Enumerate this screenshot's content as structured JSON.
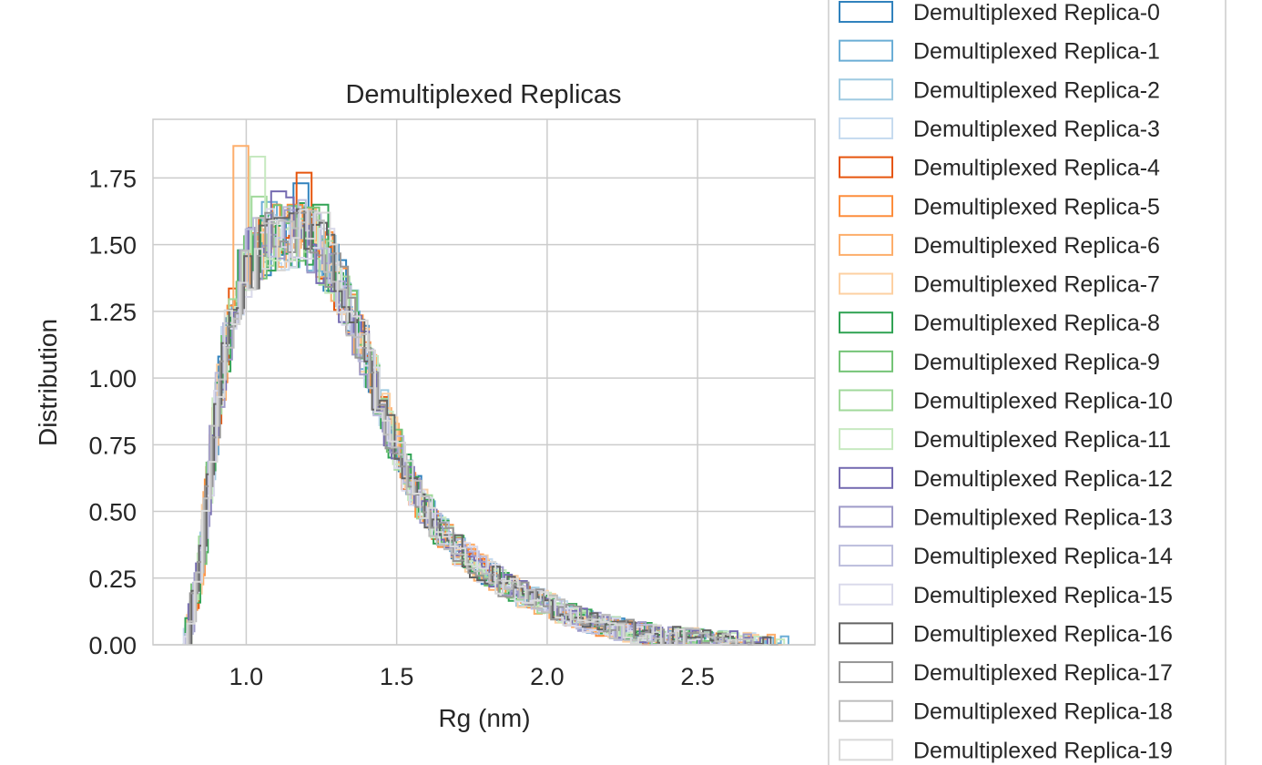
{
  "chart_data": {
    "type": "histogram-step",
    "title": "Demultiplexed Replicas",
    "xlabel": "Rg (nm)",
    "ylabel": "Distribution",
    "xlim": [
      0.69,
      2.89
    ],
    "ylim": [
      0.0,
      1.97
    ],
    "xticks": [
      1.0,
      1.5,
      2.0,
      2.5
    ],
    "xtick_labels": [
      "1.0",
      "1.5",
      "2.0",
      "2.5"
    ],
    "yticks": [
      0.0,
      0.25,
      0.5,
      0.75,
      1.0,
      1.25,
      1.5,
      1.75
    ],
    "ytick_labels": [
      "0.00",
      "0.25",
      "0.50",
      "0.75",
      "1.00",
      "1.25",
      "1.50",
      "1.75"
    ],
    "grid": true,
    "legend_position": "outside-right",
    "base_profile": {
      "x": [
        0.8,
        0.85,
        0.9,
        0.95,
        1.0,
        1.05,
        1.1,
        1.15,
        1.2,
        1.25,
        1.3,
        1.35,
        1.4,
        1.45,
        1.5,
        1.55,
        1.6,
        1.65,
        1.7,
        1.8,
        1.9,
        2.0,
        2.1,
        2.2,
        2.3,
        2.4,
        2.5,
        2.6,
        2.7,
        2.8
      ],
      "y": [
        0.0,
        0.3,
        0.85,
        1.25,
        1.42,
        1.48,
        1.52,
        1.55,
        1.53,
        1.48,
        1.38,
        1.25,
        1.08,
        0.9,
        0.74,
        0.6,
        0.5,
        0.42,
        0.36,
        0.27,
        0.2,
        0.15,
        0.1,
        0.07,
        0.045,
        0.03,
        0.02,
        0.012,
        0.006,
        0.0
      ]
    },
    "series": [
      {
        "name": "Demultiplexed Replica-0",
        "color": "#3182bd",
        "peak": [
          1.17,
          1.73
        ]
      },
      {
        "name": "Demultiplexed Replica-1",
        "color": "#6baed6",
        "peak": [
          1.08,
          1.66
        ]
      },
      {
        "name": "Demultiplexed Replica-2",
        "color": "#9ecae1",
        "peak": [
          1.12,
          1.6
        ]
      },
      {
        "name": "Demultiplexed Replica-3",
        "color": "#c6dbef",
        "peak": [
          1.2,
          1.58
        ]
      },
      {
        "name": "Demultiplexed Replica-4",
        "color": "#e6550d",
        "peak": [
          1.2,
          1.77
        ]
      },
      {
        "name": "Demultiplexed Replica-5",
        "color": "#fd8d3c",
        "peak": [
          1.15,
          1.65
        ]
      },
      {
        "name": "Demultiplexed Replica-6",
        "color": "#fdae6b",
        "peak": [
          0.98,
          1.87
        ]
      },
      {
        "name": "Demultiplexed Replica-7",
        "color": "#fdd0a2",
        "peak": [
          1.2,
          1.62
        ]
      },
      {
        "name": "Demultiplexed Replica-8",
        "color": "#31a354",
        "peak": [
          1.25,
          1.65
        ]
      },
      {
        "name": "Demultiplexed Replica-9",
        "color": "#74c476",
        "peak": [
          1.23,
          1.64
        ]
      },
      {
        "name": "Demultiplexed Replica-10",
        "color": "#a1d99b",
        "peak": [
          1.05,
          1.68
        ]
      },
      {
        "name": "Demultiplexed Replica-11",
        "color": "#c7e9c0",
        "peak": [
          1.03,
          1.83
        ]
      },
      {
        "name": "Demultiplexed Replica-12",
        "color": "#756bb1",
        "peak": [
          1.1,
          1.7
        ]
      },
      {
        "name": "Demultiplexed Replica-13",
        "color": "#9e9ac8",
        "peak": [
          1.15,
          1.63
        ]
      },
      {
        "name": "Demultiplexed Replica-14",
        "color": "#bcbddc",
        "peak": [
          1.05,
          1.6
        ]
      },
      {
        "name": "Demultiplexed Replica-15",
        "color": "#dadaeb",
        "peak": [
          1.28,
          1.56
        ]
      },
      {
        "name": "Demultiplexed Replica-16",
        "color": "#636363",
        "peak": [
          1.13,
          1.6
        ]
      },
      {
        "name": "Demultiplexed Replica-17",
        "color": "#969696",
        "peak": [
          1.2,
          1.62
        ]
      },
      {
        "name": "Demultiplexed Replica-18",
        "color": "#bdbdbd",
        "peak": [
          1.08,
          1.58
        ]
      },
      {
        "name": "Demultiplexed Replica-19",
        "color": "#d9d9d9",
        "peak": [
          1.25,
          1.62
        ]
      }
    ]
  }
}
